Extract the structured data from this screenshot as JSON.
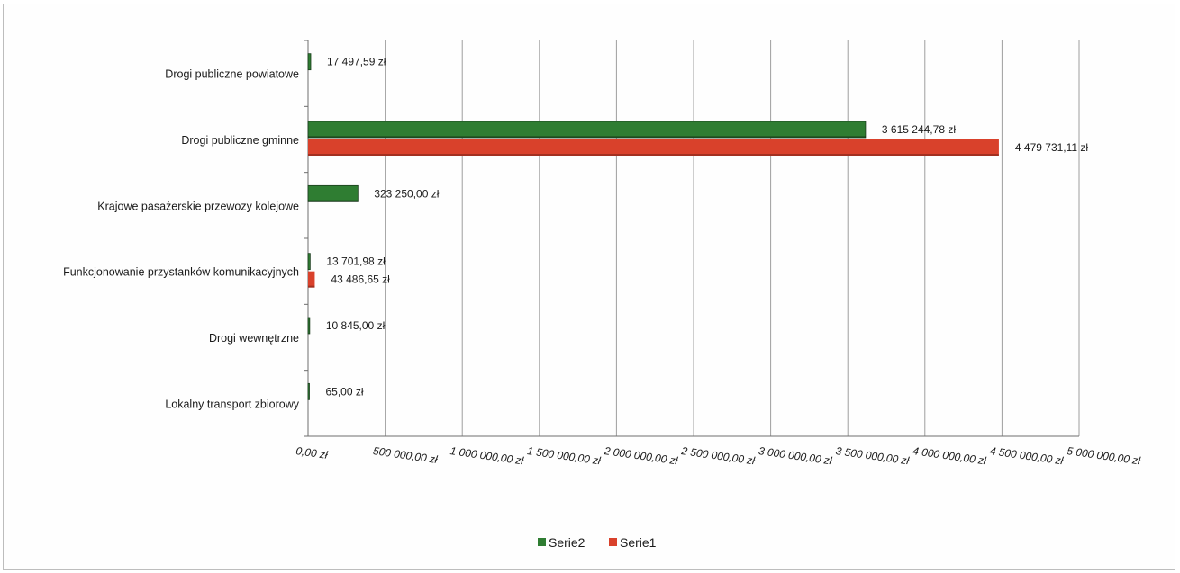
{
  "chart_data": {
    "type": "bar",
    "orientation": "horizontal",
    "title": "",
    "xlabel": "",
    "ylabel": "",
    "xlim": [
      0,
      5000000
    ],
    "grid": true,
    "legend_position": "bottom",
    "categories": [
      "Drogi publiczne powiatowe",
      "Drogi publiczne gminne",
      "Krajowe pasażerskie przewozy kolejowe",
      "Funkcjonowanie przystanków komunikacyjnych",
      "Drogi wewnętrzne",
      "Lokalny transport zbiorowy"
    ],
    "x_ticks": [
      "0,00 zł",
      "500 000,00 zł",
      "1 000 000,00 zł",
      "1 500 000,00 zł",
      "2 000 000,00 zł",
      "2 500 000,00 zł",
      "3 000 000,00 zł",
      "3 500 000,00 zł",
      "4 000 000,00 zł",
      "4 500 000,00 zł",
      "5 000 000,00 zł"
    ],
    "series": [
      {
        "name": "Serie2",
        "color": "#2f7d32",
        "values": [
          17497.59,
          3615244.78,
          323250.0,
          13701.98,
          10845.0,
          65.0
        ],
        "labels": [
          "17 497,59 zł",
          "3 615 244,78 zł",
          "323 250,00 zł",
          "13 701,98 zł",
          "10 845,00 zł",
          "65,00 zł"
        ]
      },
      {
        "name": "Serie1",
        "color": "#d9412b",
        "values": [
          null,
          4479731.11,
          null,
          43486.65,
          null,
          null
        ],
        "labels": [
          null,
          "4 479 731,11 zł",
          null,
          "43 486,65 zł",
          null,
          null
        ]
      }
    ]
  }
}
